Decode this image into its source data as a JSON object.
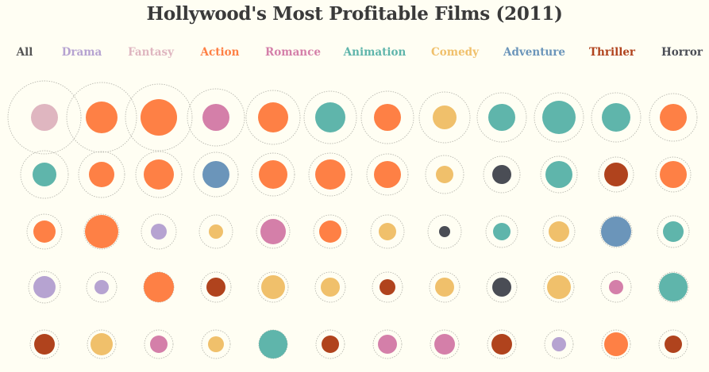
{
  "chart_data": {
    "type": "bubble-grid",
    "title": "Hollywood's Most Profitable Films (2011)",
    "filters": [
      {
        "label": "All",
        "color": "#555555"
      },
      {
        "label": "Drama",
        "color": "#b6a3d1"
      },
      {
        "label": "Fantasy",
        "color": "#dfb6c0"
      },
      {
        "label": "Action",
        "color": "#fe8045"
      },
      {
        "label": "Romance",
        "color": "#d47fa9"
      },
      {
        "label": "Animation",
        "color": "#5fb5ab"
      },
      {
        "label": "Comedy",
        "color": "#f0c06b"
      },
      {
        "label": "Adventure",
        "color": "#6b95ba"
      },
      {
        "label": "Thriller",
        "color": "#b0431d"
      },
      {
        "label": "Horror",
        "color": "#4a4d55"
      }
    ],
    "bubble_scale_note": "inner = relative size of filled circle, outer = relative size of dotted ring",
    "films": [
      [
        {
          "genre": "Fantasy",
          "inner": 17,
          "outer": 46
        },
        {
          "genre": "Action",
          "inner": 20,
          "outer": 44
        },
        {
          "genre": "Action",
          "inner": 23,
          "outer": 42
        },
        {
          "genre": "Romance",
          "inner": 17,
          "outer": 36
        },
        {
          "genre": "Action",
          "inner": 19,
          "outer": 34
        },
        {
          "genre": "Animation",
          "inner": 19,
          "outer": 33
        },
        {
          "genre": "Action",
          "inner": 17,
          "outer": 33
        },
        {
          "genre": "Comedy",
          "inner": 15,
          "outer": 32
        },
        {
          "genre": "Animation",
          "inner": 17,
          "outer": 31
        },
        {
          "genre": "Animation",
          "inner": 21,
          "outer": 31
        },
        {
          "genre": "Animation",
          "inner": 18,
          "outer": 31
        },
        {
          "genre": "Action",
          "inner": 17,
          "outer": 30
        }
      ],
      [
        {
          "genre": "Animation",
          "inner": 15,
          "outer": 30
        },
        {
          "genre": "Action",
          "inner": 16,
          "outer": 29
        },
        {
          "genre": "Action",
          "inner": 19,
          "outer": 29
        },
        {
          "genre": "Adventure",
          "inner": 17,
          "outer": 28
        },
        {
          "genre": "Action",
          "inner": 18,
          "outer": 27
        },
        {
          "genre": "Action",
          "inner": 19,
          "outer": 27
        },
        {
          "genre": "Action",
          "inner": 17,
          "outer": 26
        },
        {
          "genre": "Comedy",
          "inner": 11,
          "outer": 24
        },
        {
          "genre": "Horror",
          "inner": 12,
          "outer": 23
        },
        {
          "genre": "Animation",
          "inner": 17,
          "outer": 23
        },
        {
          "genre": "Thriller",
          "inner": 15,
          "outer": 22
        },
        {
          "genre": "Action",
          "inner": 17,
          "outer": 22
        }
      ],
      [
        {
          "genre": "Action",
          "inner": 14,
          "outer": 22
        },
        {
          "genre": "Action",
          "inner": 21,
          "outer": 22
        },
        {
          "genre": "Drama",
          "inner": 10,
          "outer": 22
        },
        {
          "genre": "Comedy",
          "inner": 9,
          "outer": 21
        },
        {
          "genre": "Romance",
          "inner": 16,
          "outer": 21
        },
        {
          "genre": "Action",
          "inner": 14,
          "outer": 21
        },
        {
          "genre": "Comedy",
          "inner": 11,
          "outer": 21
        },
        {
          "genre": "Horror",
          "inner": 7,
          "outer": 21
        },
        {
          "genre": "Animation",
          "inner": 11,
          "outer": 20
        },
        {
          "genre": "Comedy",
          "inner": 13,
          "outer": 20
        },
        {
          "genre": "Adventure",
          "inner": 19,
          "outer": 20
        },
        {
          "genre": "Animation",
          "inner": 13,
          "outer": 20
        }
      ],
      [
        {
          "genre": "Drama",
          "inner": 14,
          "outer": 20
        },
        {
          "genre": "Drama",
          "inner": 9,
          "outer": 19
        },
        {
          "genre": "Action",
          "inner": 19,
          "outer": 19
        },
        {
          "genre": "Thriller",
          "inner": 12,
          "outer": 19
        },
        {
          "genre": "Comedy",
          "inner": 15,
          "outer": 19
        },
        {
          "genre": "Comedy",
          "inner": 12,
          "outer": 19
        },
        {
          "genre": "Thriller",
          "inner": 10,
          "outer": 19
        },
        {
          "genre": "Comedy",
          "inner": 12,
          "outer": 19
        },
        {
          "genre": "Horror",
          "inner": 12,
          "outer": 19
        },
        {
          "genre": "Comedy",
          "inner": 15,
          "outer": 19
        },
        {
          "genre": "Romance",
          "inner": 9,
          "outer": 19
        },
        {
          "genre": "Animation",
          "inner": 18,
          "outer": 19
        }
      ],
      [
        {
          "genre": "Thriller",
          "inner": 13,
          "outer": 18
        },
        {
          "genre": "Comedy",
          "inner": 14,
          "outer": 18
        },
        {
          "genre": "Romance",
          "inner": 11,
          "outer": 18
        },
        {
          "genre": "Comedy",
          "inner": 10,
          "outer": 18
        },
        {
          "genre": "Animation",
          "inner": 18,
          "outer": 18
        },
        {
          "genre": "Thriller",
          "inner": 11,
          "outer": 18
        },
        {
          "genre": "Romance",
          "inner": 12,
          "outer": 18
        },
        {
          "genre": "Romance",
          "inner": 13,
          "outer": 18
        },
        {
          "genre": "Thriller",
          "inner": 13,
          "outer": 18
        },
        {
          "genre": "Drama",
          "inner": 9,
          "outer": 18
        },
        {
          "genre": "Action",
          "inner": 15,
          "outer": 18
        },
        {
          "genre": "Thriller",
          "inner": 11,
          "outer": 18
        }
      ]
    ]
  }
}
